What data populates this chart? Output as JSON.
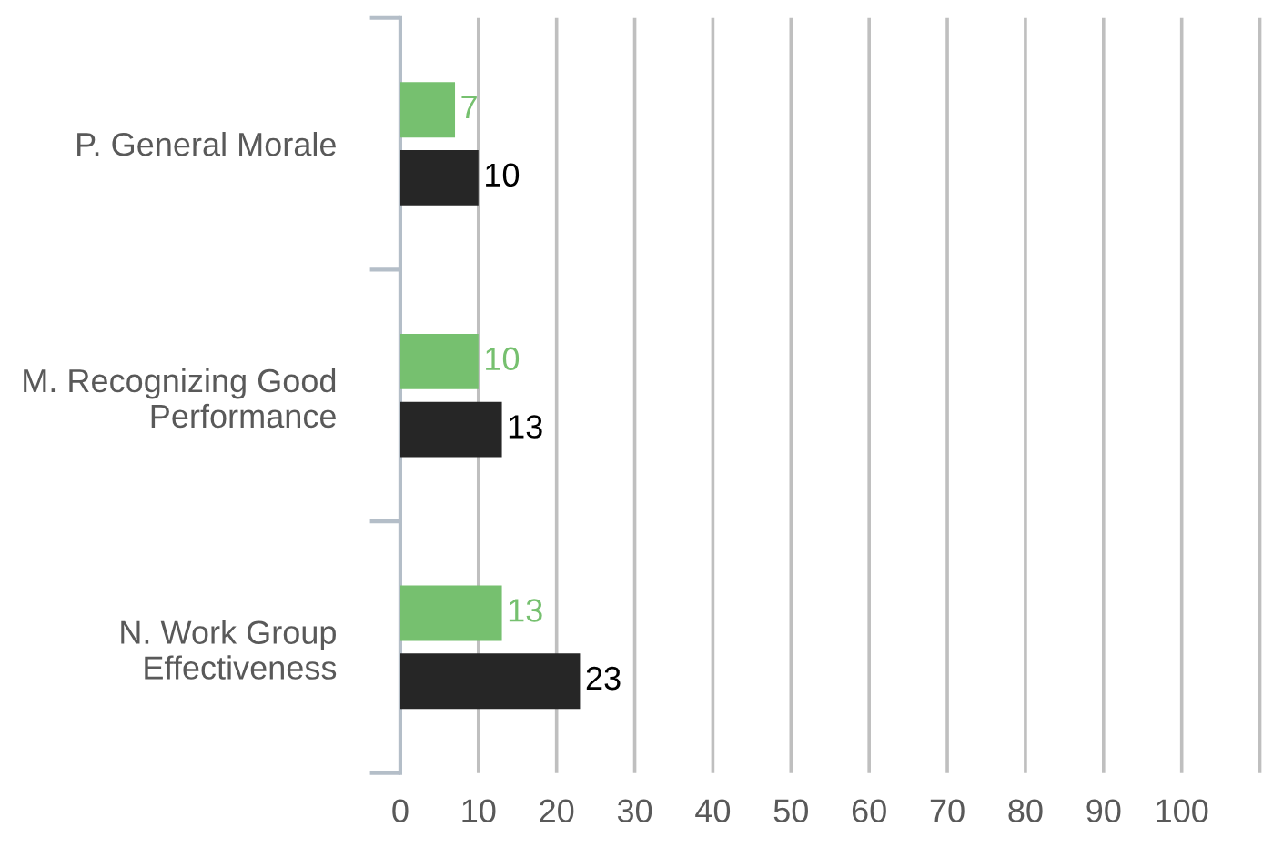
{
  "chart_data": {
    "type": "bar",
    "orientation": "horizontal",
    "categories": [
      "P. General Morale",
      "M. Recognizing Good Performance",
      "N. Work Group Effectiveness"
    ],
    "series": [
      {
        "color": "#76c06f",
        "values": [
          7,
          10,
          13
        ]
      },
      {
        "color": "#262626",
        "values": [
          10,
          13,
          23
        ]
      }
    ],
    "xlim": [
      0,
      110
    ],
    "xticks": [
      0,
      10,
      20,
      30,
      40,
      50,
      60,
      70,
      80,
      90,
      100,
      {
        "value": 110,
        "label": null
      }
    ],
    "grid": "x",
    "data_labels": true
  }
}
